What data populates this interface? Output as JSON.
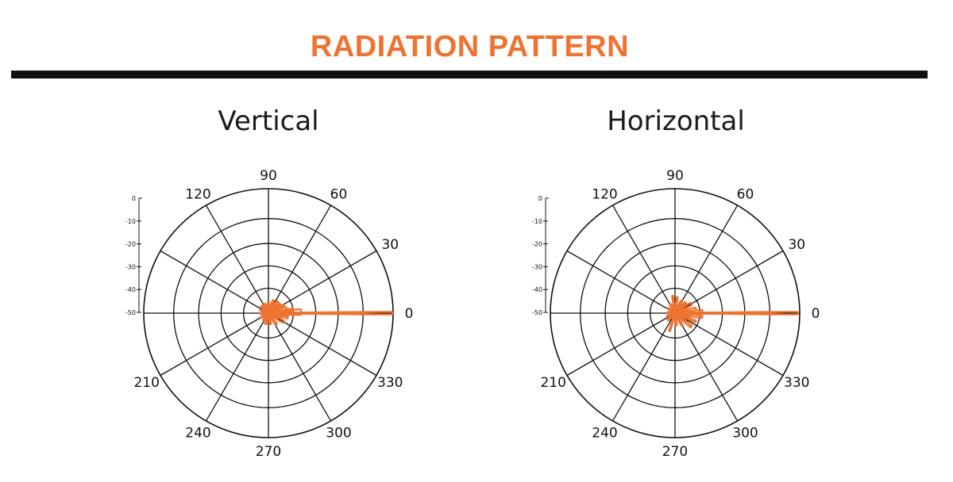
{
  "page": {
    "title": "RADIATION PATTERN",
    "accent_color": "#ee7330",
    "divider_color": "#111111"
  },
  "chart_data": [
    {
      "type": "polar",
      "id": "vertical",
      "title": "Vertical",
      "angle_ticks": [
        0,
        30,
        60,
        90,
        120,
        210,
        240,
        270,
        300,
        330
      ],
      "spoke_step_deg": 30,
      "radial_ticks": [
        0,
        -10,
        -20,
        -30,
        -40,
        -50
      ],
      "rlim": [
        -50,
        0
      ],
      "grid": true,
      "series": [
        {
          "color": "#ee7330",
          "lobes": [
            {
              "angle": 0,
              "level": -0.5,
              "width": 1.2
            },
            {
              "angle": 2,
              "level": -37,
              "width": 10
            },
            {
              "angle": 8,
              "level": -40,
              "width": 6
            },
            {
              "angle": 16,
              "level": -42.5,
              "width": 7
            },
            {
              "angle": 25,
              "level": -43,
              "width": 6
            },
            {
              "angle": 35,
              "level": -44,
              "width": 7
            },
            {
              "angle": 50,
              "level": -44,
              "width": 8
            },
            {
              "angle": 68,
              "level": -44.5,
              "width": 8
            },
            {
              "angle": 90,
              "level": -45.5,
              "width": 8
            },
            {
              "angle": 112,
              "level": -46,
              "width": 8
            },
            {
              "angle": 135,
              "level": -46,
              "width": 8
            },
            {
              "angle": 160,
              "level": -46.5,
              "width": 8
            },
            {
              "angle": 185,
              "level": -47,
              "width": 8
            },
            {
              "angle": 210,
              "level": -46.5,
              "width": 8
            },
            {
              "angle": 235,
              "level": -46.5,
              "width": 8
            },
            {
              "angle": 255,
              "level": -45.5,
              "width": 8
            },
            {
              "angle": 280,
              "level": -45.5,
              "width": 8
            },
            {
              "angle": 305,
              "level": -44.5,
              "width": 8
            },
            {
              "angle": 330,
              "level": -43,
              "width": 8
            },
            {
              "angle": 347,
              "level": -42,
              "width": 6
            }
          ]
        }
      ]
    },
    {
      "type": "polar",
      "id": "horizontal",
      "title": "Horizontal",
      "angle_ticks": [
        0,
        30,
        60,
        90,
        120,
        210,
        240,
        270,
        300,
        330
      ],
      "spoke_step_deg": 30,
      "radial_ticks": [
        0,
        -10,
        -20,
        -30,
        -40,
        -50
      ],
      "rlim": [
        -50,
        0
      ],
      "grid": true,
      "series": [
        {
          "color": "#ee7330",
          "lobes": [
            {
              "angle": 0,
              "level": -1,
              "width": 1.3
            },
            {
              "angle": 3,
              "level": -39,
              "width": 8
            },
            {
              "angle": 12,
              "level": -41.5,
              "width": 7
            },
            {
              "angle": 30,
              "level": -42.5,
              "width": 8
            },
            {
              "angle": 45,
              "level": -44,
              "width": 7
            },
            {
              "angle": 62,
              "level": -44.5,
              "width": 7
            },
            {
              "angle": 82,
              "level": -43.5,
              "width": 4
            },
            {
              "angle": 98,
              "level": -43,
              "width": 4
            },
            {
              "angle": 118,
              "level": -46,
              "width": 8
            },
            {
              "angle": 145,
              "level": -46.5,
              "width": 8
            },
            {
              "angle": 175,
              "level": -47,
              "width": 8
            },
            {
              "angle": 200,
              "level": -46.5,
              "width": 8
            },
            {
              "angle": 225,
              "level": -46,
              "width": 8
            },
            {
              "angle": 253,
              "level": -42.5,
              "width": 4
            },
            {
              "angle": 275,
              "level": -45,
              "width": 7
            },
            {
              "angle": 300,
              "level": -44.5,
              "width": 7
            },
            {
              "angle": 320,
              "level": -41.5,
              "width": 6
            },
            {
              "angle": 338,
              "level": -41,
              "width": 5
            },
            {
              "angle": 352,
              "level": -39,
              "width": 5
            }
          ]
        }
      ]
    }
  ]
}
